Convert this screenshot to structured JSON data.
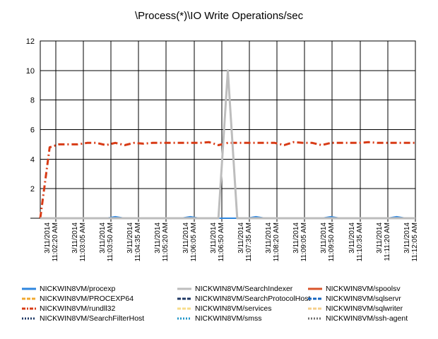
{
  "chart_data": {
    "type": "line",
    "title": "\\Process(*)\\IO Write Operations/sec",
    "xlabel": "",
    "ylabel": "",
    "ylim": [
      0,
      12
    ],
    "yticks": [
      "12",
      "10",
      "8",
      "6",
      "4",
      "2"
    ],
    "grid": true,
    "legend_position": "bottom",
    "x_tick_labels": [
      [
        "3/11/2014",
        "11:02:20 AM"
      ],
      [
        "3/11/2014",
        "11:03:05 AM"
      ],
      [
        "3/11/2014",
        "11:03:50 AM"
      ],
      [
        "3/11/2014",
        "11:04:35 AM"
      ],
      [
        "3/11/2014",
        "11:05:20 AM"
      ],
      [
        "3/11/2014",
        "11:06:05 AM"
      ],
      [
        "3/11/2014",
        "11:06:50 AM"
      ],
      [
        "3/11/2014",
        "11:07:35 AM"
      ],
      [
        "3/11/2014",
        "11:08:20 AM"
      ],
      [
        "3/11/2014",
        "11:09:05 AM"
      ],
      [
        "3/11/2014",
        "11:09:50 AM"
      ],
      [
        "3/11/2014",
        "11:10:35 AM"
      ],
      [
        "3/11/2014",
        "11:11:20 AM"
      ],
      [
        "3/11/2014",
        "11:12:05 AM"
      ]
    ],
    "x_points": 41,
    "series": [
      {
        "name": "NICKWIN8VM/procexp",
        "color": "#2E86DE",
        "dash": "solid",
        "values": [
          0,
          0,
          0,
          0,
          0,
          0,
          0,
          0,
          0.1,
          0,
          0,
          0,
          0,
          0,
          0,
          0,
          0.1,
          0,
          0,
          0,
          0,
          0,
          0,
          0.1,
          0,
          0,
          0,
          0,
          0,
          0,
          0,
          0.1,
          0,
          0,
          0,
          0,
          0,
          0,
          0.1,
          0,
          0
        ]
      },
      {
        "name": "NICKWIN8VM/SearchIndexer",
        "color": "#BDBDBD",
        "dash": "solid",
        "values": [
          0,
          0,
          0,
          0,
          0,
          0,
          0,
          0,
          0,
          0,
          0,
          0,
          0,
          0,
          0,
          0,
          0,
          0,
          0,
          0,
          10,
          0,
          0,
          0,
          0,
          0,
          0,
          0,
          0,
          0,
          0,
          0,
          0,
          0,
          0,
          0,
          0,
          0,
          0,
          0,
          0
        ]
      },
      {
        "name": "NICKWIN8VM/spoolsv",
        "color": "#D9542B",
        "dash": "solid",
        "values": [
          0,
          0,
          0,
          0,
          0,
          0,
          0,
          0,
          0,
          0,
          0,
          0,
          0,
          0,
          0,
          0,
          0,
          0,
          0,
          0,
          0,
          0,
          0,
          0,
          0,
          0,
          0,
          0,
          0,
          0,
          0,
          0,
          0,
          0,
          0,
          0,
          0,
          0,
          0,
          0,
          0
        ]
      },
      {
        "name": "NICKWIN8VM/PROCEXP64",
        "color": "#F0A830",
        "dash": "dash",
        "values": [
          0,
          0,
          0,
          0,
          0,
          0,
          0,
          0,
          0,
          0,
          0,
          0,
          0,
          0,
          0,
          0,
          0,
          0,
          0,
          0,
          0,
          0,
          0,
          0,
          0,
          0,
          0,
          0,
          0,
          0,
          0,
          0,
          0,
          0,
          0,
          0,
          0,
          0,
          0,
          0,
          0
        ]
      },
      {
        "name": "NICKWIN8VM/SearchProtocolHost",
        "color": "#1F3864",
        "dash": "dash",
        "values": [
          0,
          0,
          0,
          0,
          0,
          0,
          0,
          0,
          0,
          0,
          0,
          0,
          0,
          0,
          0,
          0,
          0,
          0,
          0,
          0,
          0,
          0,
          0,
          0,
          0,
          0,
          0,
          0,
          0,
          0,
          0,
          0,
          0,
          0,
          0,
          0,
          0,
          0,
          0,
          0,
          0
        ]
      },
      {
        "name": "NICKWIN8VM/sqlservr",
        "color": "#1565C0",
        "dash": "dash",
        "values": [
          0,
          0,
          0,
          0,
          0,
          0,
          0,
          0,
          0,
          0,
          0,
          0,
          0,
          0,
          0,
          0,
          0,
          0,
          0,
          0,
          0,
          0,
          0,
          0,
          0,
          0,
          0,
          0,
          0,
          0,
          0,
          0,
          0,
          0,
          0,
          0,
          0,
          0,
          0,
          0,
          0
        ]
      },
      {
        "name": "NICKWIN8VM/rundll32",
        "color": "#D83B16",
        "dash": "dashdot",
        "values": [
          0,
          4.8,
          5.0,
          5.0,
          5.0,
          5.1,
          5.1,
          4.95,
          5.1,
          4.95,
          5.1,
          5.05,
          5.1,
          5.1,
          5.1,
          5.1,
          5.1,
          5.1,
          5.15,
          4.95,
          5.1,
          5.1,
          5.1,
          5.1,
          5.1,
          5.1,
          4.95,
          5.15,
          5.1,
          5.1,
          4.95,
          5.1,
          5.1,
          5.1,
          5.1,
          5.15,
          5.1,
          5.1,
          5.1,
          5.1,
          5.1
        ]
      },
      {
        "name": "NICKWIN8VM/services",
        "color": "#F7DC8A",
        "dash": "dash",
        "values": [
          0,
          0,
          0,
          0,
          0,
          0,
          0,
          0,
          0,
          0,
          0,
          0,
          0,
          0,
          0,
          0,
          0,
          0,
          0,
          0,
          0,
          0,
          0,
          0,
          0,
          0,
          0,
          0,
          0,
          0,
          0,
          0,
          0,
          0,
          0,
          0,
          0,
          0,
          0,
          0,
          0
        ]
      },
      {
        "name": "NICKWIN8VM/sqlwriter",
        "color": "#F5CE8A",
        "dash": "dash",
        "values": [
          0,
          0,
          0,
          0,
          0,
          0,
          0,
          0,
          0,
          0,
          0,
          0,
          0,
          0,
          0,
          0,
          0,
          0,
          0,
          0,
          0,
          0,
          0,
          0,
          0,
          0,
          0,
          0,
          0,
          0,
          0,
          0,
          0,
          0,
          0,
          0,
          0,
          0,
          0,
          0,
          0
        ]
      },
      {
        "name": "NICKWIN8VM/SearchFilterHost",
        "color": "#1F3864",
        "dash": "dot",
        "values": [
          0,
          0,
          0,
          0,
          0,
          0,
          0,
          0,
          0,
          0,
          0,
          0,
          0,
          0,
          0,
          0,
          0,
          0,
          0,
          0,
          0,
          0,
          0,
          0,
          0,
          0,
          0,
          0,
          0,
          0,
          0,
          0,
          0,
          0,
          0,
          0,
          0,
          0,
          0,
          0,
          0
        ]
      },
      {
        "name": "NICKWIN8VM/smss",
        "color": "#2196C8",
        "dash": "dot",
        "values": [
          0,
          0,
          0,
          0,
          0,
          0,
          0,
          0,
          0,
          0,
          0,
          0,
          0,
          0,
          0,
          0,
          0,
          0,
          0,
          0,
          0,
          0,
          0,
          0,
          0,
          0,
          0,
          0,
          0,
          0,
          0,
          0,
          0,
          0,
          0,
          0,
          0,
          0,
          0,
          0,
          0
        ]
      },
      {
        "name": "NICKWIN8VM/ssh-agent",
        "color": "#6E6E6E",
        "dash": "dot",
        "values": [
          0,
          0,
          0,
          0,
          0,
          0,
          0,
          0,
          0,
          0,
          0,
          0,
          0,
          0,
          0,
          0,
          0,
          0,
          0,
          0,
          0,
          0,
          0,
          0,
          0,
          0,
          0,
          0,
          0,
          0,
          0,
          0,
          0,
          0,
          0,
          0,
          0,
          0,
          0,
          0,
          0
        ]
      }
    ]
  }
}
